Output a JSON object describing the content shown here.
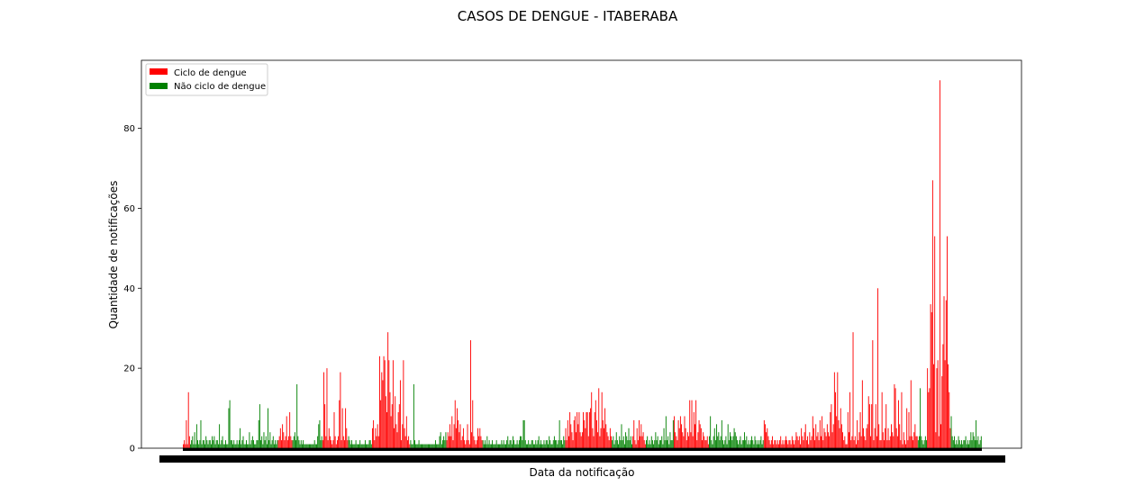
{
  "chart_data": {
    "type": "bar",
    "title": "CASOS DE DENGUE - ITABERABA",
    "xlabel": "Data da notificação",
    "ylabel": "Quantidade de notificações",
    "ylim": [
      0,
      97
    ],
    "yticks": [
      0,
      20,
      40,
      60,
      80
    ],
    "grid": false,
    "legend_position": "top-left",
    "series": [
      {
        "name": "Ciclo de dengue",
        "color": "#ff0000"
      },
      {
        "name": "Não ciclo de dengue",
        "color": "#008000"
      }
    ],
    "segments": [
      {
        "cycle": 0,
        "values": [
          1,
          2,
          1,
          7,
          1,
          14,
          3
        ]
      },
      {
        "cycle": 1,
        "values": [
          1,
          2,
          3,
          1,
          4,
          1,
          6,
          2,
          1,
          2,
          7,
          1,
          2,
          2,
          1,
          3,
          2,
          1,
          2,
          2,
          1,
          3,
          2,
          3,
          1,
          2,
          2,
          1,
          6,
          1,
          2,
          3,
          1,
          1,
          2,
          1,
          1,
          10,
          12,
          2,
          2,
          1,
          2,
          1,
          1,
          2,
          1,
          2,
          5,
          1,
          2,
          3,
          1,
          1,
          2,
          1,
          1,
          4,
          1,
          2,
          3,
          2,
          1,
          1,
          2,
          2,
          7,
          11,
          2,
          3,
          1,
          4,
          2,
          3,
          1,
          10,
          2,
          4,
          1,
          2,
          3,
          1,
          2,
          1,
          2
        ]
      },
      {
        "cycle": 0,
        "values": [
          2,
          3,
          5,
          2,
          6,
          4,
          2,
          3,
          8,
          2,
          3,
          9,
          3,
          2
        ]
      },
      {
        "cycle": 1,
        "values": [
          2,
          3,
          4,
          2,
          16,
          3,
          2,
          1,
          2,
          1,
          2,
          1,
          1,
          1,
          1,
          1,
          1,
          1,
          1,
          1,
          1,
          2,
          1,
          1,
          3,
          6,
          7,
          2,
          3
        ]
      },
      {
        "cycle": 0,
        "values": [
          2,
          19,
          11,
          3,
          20,
          2,
          5,
          3,
          2,
          1,
          2,
          9,
          3,
          1,
          2,
          3,
          12,
          19,
          2,
          10,
          3,
          2,
          10,
          5,
          2
        ]
      },
      {
        "cycle": 1,
        "values": [
          3,
          2,
          1,
          2,
          1,
          1,
          1,
          2,
          1,
          1,
          1,
          2,
          1,
          1,
          1,
          1,
          2,
          1,
          1,
          1,
          2,
          2,
          1
        ]
      },
      {
        "cycle": 0,
        "values": [
          5,
          7,
          2,
          5,
          3,
          6,
          3,
          23,
          12,
          19,
          17,
          23,
          22,
          13,
          9,
          29,
          22,
          14,
          8,
          11,
          22,
          5,
          13,
          6,
          4,
          9,
          11,
          17,
          2,
          6,
          22,
          5,
          3,
          8,
          2,
          3,
          1
        ]
      },
      {
        "cycle": 1,
        "values": [
          2,
          1,
          1,
          16,
          2,
          1,
          1,
          1,
          2,
          1,
          1,
          1,
          1,
          1,
          1,
          1,
          1,
          1,
          1,
          1,
          1,
          1,
          1,
          1,
          2,
          1,
          1,
          1,
          3,
          4,
          1,
          2,
          3,
          2,
          4
        ]
      },
      {
        "cycle": 0,
        "values": [
          2,
          4,
          3,
          6,
          3,
          8,
          2,
          6,
          12,
          5,
          10,
          7,
          4,
          6,
          2,
          3,
          5,
          2,
          1,
          2,
          6,
          2,
          1,
          27,
          4,
          12,
          3,
          2,
          1,
          2,
          5,
          3,
          5,
          3,
          2
        ]
      },
      {
        "cycle": 1,
        "values": [
          2,
          1,
          2,
          1,
          3,
          1,
          2,
          1,
          1,
          2,
          1,
          1,
          1,
          2,
          1,
          1,
          1,
          1,
          2,
          1,
          2,
          1,
          1,
          2,
          3,
          1,
          2,
          2,
          1,
          3,
          2,
          1,
          1,
          2,
          1,
          2,
          3,
          3,
          2,
          7,
          7,
          2,
          1,
          1,
          2,
          1,
          1,
          2,
          2,
          1,
          1,
          2,
          1,
          2,
          3,
          1,
          2,
          1,
          1,
          2,
          1,
          2,
          2,
          1,
          3,
          2,
          1,
          1,
          2,
          3,
          2,
          2,
          1,
          2,
          7,
          2,
          2,
          1,
          3,
          2
        ]
      },
      {
        "cycle": 0,
        "values": [
          5,
          2,
          7,
          3,
          9,
          6,
          4,
          2,
          7,
          8,
          4,
          9,
          6,
          9,
          4,
          3,
          4,
          9,
          7,
          5,
          9,
          9,
          3,
          9,
          10,
          14,
          5,
          3,
          9,
          12,
          7,
          4,
          15,
          3,
          5,
          14,
          7,
          5,
          10,
          6,
          4,
          3,
          2,
          5,
          3
        ]
      },
      {
        "cycle": 1,
        "values": [
          2,
          3,
          1,
          2,
          4,
          2,
          1,
          3,
          2,
          6,
          2,
          3,
          1,
          4,
          3,
          2,
          5,
          2,
          3,
          1
        ]
      },
      {
        "cycle": 0,
        "values": [
          3,
          7,
          2,
          1,
          5,
          2,
          7,
          3,
          6,
          3,
          4,
          2,
          1
        ]
      },
      {
        "cycle": 1,
        "values": [
          2,
          3,
          1,
          2,
          1,
          3,
          2,
          1,
          2,
          4,
          2,
          3,
          1,
          2,
          2,
          3,
          1,
          5,
          2,
          8,
          2,
          3,
          1,
          4,
          2,
          2,
          7
        ]
      },
      {
        "cycle": 0,
        "values": [
          8,
          4,
          3,
          2,
          7,
          5,
          8,
          6,
          4,
          3,
          8,
          5,
          2,
          4,
          3,
          12,
          4,
          12,
          3,
          9,
          6,
          12,
          2,
          4,
          7,
          6,
          5,
          2,
          4,
          3,
          2,
          2,
          3,
          1
        ]
      },
      {
        "cycle": 1,
        "values": [
          3,
          8,
          2,
          1,
          3,
          5,
          2,
          6,
          3,
          4,
          2,
          3,
          7,
          2,
          1,
          2,
          3,
          1,
          6,
          2,
          4,
          3,
          2,
          3,
          5,
          4,
          3,
          2,
          1,
          2,
          3,
          1,
          2,
          2,
          4,
          2,
          3,
          1,
          2,
          1,
          2,
          3,
          2,
          1,
          3,
          2,
          1,
          2,
          1,
          2,
          3,
          1,
          2
        ]
      },
      {
        "cycle": 0,
        "values": [
          7,
          6,
          4,
          5,
          3,
          2,
          1,
          2,
          3,
          1,
          2,
          2,
          1,
          2,
          1,
          2,
          3,
          1,
          2,
          1,
          2,
          3,
          2,
          1,
          2,
          2,
          1,
          3,
          2,
          1,
          2,
          4,
          3,
          2,
          3,
          1,
          5,
          3,
          2,
          4,
          6,
          2,
          3,
          1,
          4,
          2,
          3,
          8,
          5,
          2,
          6,
          3,
          4,
          2,
          7,
          3,
          8,
          2,
          5,
          4,
          3,
          6,
          4,
          3,
          9,
          11,
          4,
          6,
          19,
          14,
          8,
          19,
          7,
          5,
          10,
          6,
          4,
          2,
          3,
          1,
          1,
          9,
          4,
          14,
          2,
          3,
          29,
          2,
          3,
          1,
          7,
          2,
          4,
          9,
          3,
          17,
          5,
          3,
          2,
          5,
          6,
          13,
          11,
          3,
          11,
          27,
          2,
          5,
          11,
          3,
          40,
          6,
          2,
          2,
          14,
          4,
          2,
          5,
          11,
          2,
          5,
          2,
          3,
          6,
          4,
          3,
          16,
          15,
          5,
          3,
          12,
          6,
          2,
          14,
          1,
          4,
          2,
          1,
          10,
          2,
          9,
          3,
          17,
          3,
          2,
          4,
          6,
          3,
          3
        ]
      },
      {
        "cycle": 1,
        "values": [
          2,
          3,
          15,
          3,
          2,
          1,
          2,
          3,
          2
        ]
      },
      {
        "cycle": 0,
        "values": [
          20,
          14,
          15,
          36,
          34,
          67,
          21,
          53,
          4,
          20,
          22,
          3,
          92,
          6,
          18,
          26,
          38,
          22,
          37,
          53,
          21,
          14,
          5
        ]
      },
      {
        "cycle": 1,
        "values": [
          8,
          3,
          2,
          3,
          1,
          2,
          1,
          3,
          2,
          1,
          2,
          1,
          2,
          2,
          3,
          1,
          2,
          1,
          2,
          4,
          2,
          4,
          3,
          2,
          7,
          2,
          3,
          1,
          2,
          3
        ]
      }
    ]
  }
}
